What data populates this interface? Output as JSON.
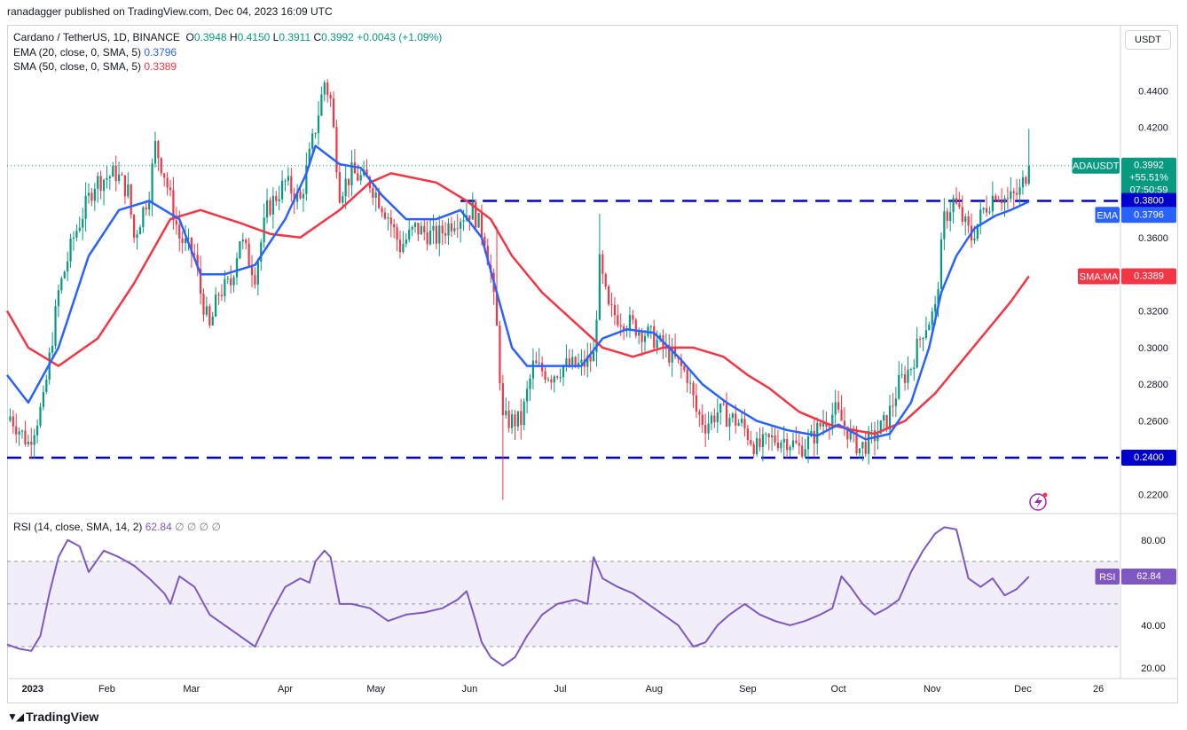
{
  "header": {
    "publisher": "ranadagger published on TradingView.com, Dec 04, 2023 16:09 UTC"
  },
  "legend": {
    "symbol": "Cardano / TetherUS, 1D, BINANCE",
    "open_label": "O",
    "open": "0.3948",
    "high_label": "H",
    "high": "0.4150",
    "low_label": "L",
    "low": "0.3911",
    "close_label": "C",
    "close": "0.3992",
    "change": "+0.0043 (+1.09%)",
    "ema_label": "EMA (20, close, 0, SMA, 5)",
    "ema_value": "0.3796",
    "sma_label": "SMA (50, close, 0, SMA, 5)",
    "sma_value": "0.3389"
  },
  "rsi_legend": {
    "label": "RSI (14, close, SMA, 14, 2)",
    "value": "62.84",
    "extras": "∅ ∅ ∅ ∅"
  },
  "toolbar": {
    "currency": "USDT"
  },
  "brand": {
    "name": "TradingView",
    "icon": "tradingview-logo"
  },
  "colors": {
    "up": "#089981",
    "down": "#f23645",
    "ema": "#2962ff",
    "sma": "#f23645",
    "rsi": "#7e57c2",
    "level": "#0000cc"
  },
  "chart_data": [
    {
      "type": "candlestick",
      "title": "Cardano / TetherUS, 1D, BINANCE",
      "ylim": [
        0.21,
        0.475
      ],
      "y_ticks": [
        "0.4400",
        "0.4200",
        "0.3600",
        "0.3200",
        "0.3000",
        "0.2800",
        "0.2600",
        "0.2200"
      ],
      "y_tick_values": [
        0.44,
        0.42,
        0.36,
        0.32,
        0.3,
        0.28,
        0.26,
        0.22
      ],
      "x_ticks": [
        "2023",
        "Feb",
        "Mar",
        "Apr",
        "May",
        "Jun",
        "Jul",
        "Aug",
        "Sep",
        "Oct",
        "Nov",
        "Dec",
        "26"
      ],
      "x_tick_days": [
        0,
        31,
        59,
        90,
        120,
        151,
        181,
        212,
        243,
        273,
        304,
        334,
        359
      ],
      "last": {
        "label": "ADAUSDT",
        "value": "0.3992",
        "change": "+55.51%",
        "countdown": "07:50:59",
        "price": 0.3992
      },
      "levels": [
        {
          "label": "0.3800",
          "value": 0.38
        },
        {
          "label": "0.2400",
          "value": 0.24
        }
      ],
      "ema_tag": {
        "label": "EMA",
        "value": "0.3796",
        "price": 0.3796
      },
      "sma_tag": {
        "label": "SMA:MA",
        "value": "0.3389",
        "price": 0.3389
      },
      "price_path": [
        [
          -2,
          0.265
        ],
        [
          5,
          0.248
        ],
        [
          10,
          0.27
        ],
        [
          15,
          0.33
        ],
        [
          20,
          0.36
        ],
        [
          27,
          0.39
        ],
        [
          34,
          0.395
        ],
        [
          38,
          0.385
        ],
        [
          40,
          0.36
        ],
        [
          45,
          0.385
        ],
        [
          47,
          0.41
        ],
        [
          50,
          0.395
        ],
        [
          55,
          0.36
        ],
        [
          60,
          0.35
        ],
        [
          62,
          0.33
        ],
        [
          65,
          0.31
        ],
        [
          68,
          0.33
        ],
        [
          72,
          0.335
        ],
        [
          75,
          0.36
        ],
        [
          80,
          0.34
        ],
        [
          84,
          0.375
        ],
        [
          90,
          0.39
        ],
        [
          95,
          0.38
        ],
        [
          100,
          0.42
        ],
        [
          103,
          0.445
        ],
        [
          105,
          0.435
        ],
        [
          108,
          0.385
        ],
        [
          112,
          0.395
        ],
        [
          118,
          0.39
        ],
        [
          124,
          0.372
        ],
        [
          128,
          0.355
        ],
        [
          133,
          0.365
        ],
        [
          140,
          0.36
        ],
        [
          146,
          0.37
        ],
        [
          152,
          0.375
        ],
        [
          156,
          0.36
        ],
        [
          158,
          0.34
        ],
        [
          160,
          0.31
        ],
        [
          162,
          0.26
        ],
        [
          168,
          0.26
        ],
        [
          172,
          0.29
        ],
        [
          178,
          0.285
        ],
        [
          182,
          0.29
        ],
        [
          188,
          0.29
        ],
        [
          192,
          0.295
        ],
        [
          194,
          0.345
        ],
        [
          197,
          0.32
        ],
        [
          202,
          0.315
        ],
        [
          207,
          0.31
        ],
        [
          212,
          0.305
        ],
        [
          218,
          0.295
        ],
        [
          223,
          0.285
        ],
        [
          226,
          0.265
        ],
        [
          229,
          0.258
        ],
        [
          233,
          0.265
        ],
        [
          237,
          0.262
        ],
        [
          241,
          0.258
        ],
        [
          246,
          0.245
        ],
        [
          251,
          0.25
        ],
        [
          256,
          0.25
        ],
        [
          260,
          0.245
        ],
        [
          264,
          0.25
        ],
        [
          268,
          0.26
        ],
        [
          272,
          0.265
        ],
        [
          276,
          0.255
        ],
        [
          280,
          0.245
        ],
        [
          284,
          0.25
        ],
        [
          289,
          0.26
        ],
        [
          293,
          0.28
        ],
        [
          297,
          0.29
        ],
        [
          301,
          0.31
        ],
        [
          305,
          0.32
        ],
        [
          308,
          0.37
        ],
        [
          311,
          0.38
        ],
        [
          314,
          0.37
        ],
        [
          317,
          0.36
        ],
        [
          321,
          0.375
        ],
        [
          325,
          0.385
        ],
        [
          329,
          0.38
        ],
        [
          333,
          0.385
        ],
        [
          336,
          0.3992
        ]
      ],
      "series": [
        {
          "name": "EMA 20",
          "points": [
            [
              -2,
              0.285
            ],
            [
              5,
              0.27
            ],
            [
              15,
              0.3
            ],
            [
              25,
              0.35
            ],
            [
              35,
              0.375
            ],
            [
              45,
              0.38
            ],
            [
              55,
              0.37
            ],
            [
              62,
              0.34
            ],
            [
              70,
              0.34
            ],
            [
              80,
              0.345
            ],
            [
              90,
              0.37
            ],
            [
              97,
              0.395
            ],
            [
              100,
              0.41
            ],
            [
              108,
              0.4
            ],
            [
              115,
              0.398
            ],
            [
              122,
              0.383
            ],
            [
              130,
              0.37
            ],
            [
              140,
              0.37
            ],
            [
              148,
              0.375
            ],
            [
              155,
              0.36
            ],
            [
              160,
              0.33
            ],
            [
              165,
              0.3
            ],
            [
              170,
              0.29
            ],
            [
              178,
              0.29
            ],
            [
              188,
              0.29
            ],
            [
              195,
              0.305
            ],
            [
              203,
              0.31
            ],
            [
              212,
              0.308
            ],
            [
              220,
              0.295
            ],
            [
              228,
              0.28
            ],
            [
              236,
              0.27
            ],
            [
              246,
              0.26
            ],
            [
              256,
              0.255
            ],
            [
              266,
              0.252
            ],
            [
              273,
              0.258
            ],
            [
              282,
              0.25
            ],
            [
              290,
              0.253
            ],
            [
              297,
              0.27
            ],
            [
              303,
              0.3
            ],
            [
              307,
              0.33
            ],
            [
              312,
              0.35
            ],
            [
              318,
              0.365
            ],
            [
              325,
              0.372
            ],
            [
              330,
              0.375
            ],
            [
              336,
              0.3796
            ]
          ]
        },
        {
          "name": "SMA 50",
          "points": [
            [
              -2,
              0.32
            ],
            [
              5,
              0.3
            ],
            [
              15,
              0.29
            ],
            [
              28,
              0.305
            ],
            [
              40,
              0.335
            ],
            [
              52,
              0.37
            ],
            [
              62,
              0.375
            ],
            [
              75,
              0.368
            ],
            [
              85,
              0.362
            ],
            [
              95,
              0.36
            ],
            [
              108,
              0.375
            ],
            [
              118,
              0.39
            ],
            [
              125,
              0.395
            ],
            [
              140,
              0.39
            ],
            [
              150,
              0.38
            ],
            [
              158,
              0.37
            ],
            [
              165,
              0.35
            ],
            [
              175,
              0.33
            ],
            [
              185,
              0.315
            ],
            [
              195,
              0.3
            ],
            [
              205,
              0.295
            ],
            [
              215,
              0.3
            ],
            [
              225,
              0.3
            ],
            [
              235,
              0.295
            ],
            [
              243,
              0.285
            ],
            [
              250,
              0.278
            ],
            [
              260,
              0.265
            ],
            [
              270,
              0.258
            ],
            [
              278,
              0.255
            ],
            [
              285,
              0.253
            ],
            [
              295,
              0.26
            ],
            [
              305,
              0.275
            ],
            [
              315,
              0.295
            ],
            [
              325,
              0.315
            ],
            [
              330,
              0.325
            ],
            [
              336,
              0.3389
            ]
          ]
        }
      ]
    },
    {
      "type": "line",
      "title": "RSI (14, close, SMA, 14, 2)",
      "ylim": [
        15,
        92
      ],
      "y_ticks": [
        "80.00",
        "40.00",
        "20.00"
      ],
      "y_tick_values": [
        80,
        40,
        20
      ],
      "band": [
        30,
        70
      ],
      "midline": 50,
      "last": {
        "label": "RSI",
        "value": "62.84",
        "price": 62.84
      },
      "series": [
        {
          "name": "RSI",
          "points": [
            [
              -2,
              31
            ],
            [
              2,
              29
            ],
            [
              6,
              28
            ],
            [
              9,
              35
            ],
            [
              12,
              55
            ],
            [
              15,
              72
            ],
            [
              18,
              80
            ],
            [
              22,
              77
            ],
            [
              25,
              65
            ],
            [
              30,
              75
            ],
            [
              35,
              72
            ],
            [
              40,
              68
            ],
            [
              45,
              62
            ],
            [
              50,
              55
            ],
            [
              52,
              50
            ],
            [
              55,
              63
            ],
            [
              60,
              58
            ],
            [
              65,
              45
            ],
            [
              70,
              40
            ],
            [
              75,
              35
            ],
            [
              80,
              30
            ],
            [
              85,
              45
            ],
            [
              90,
              58
            ],
            [
              95,
              62
            ],
            [
              98,
              60
            ],
            [
              100,
              70
            ],
            [
              103,
              75
            ],
            [
              105,
              72
            ],
            [
              108,
              50
            ],
            [
              112,
              50
            ],
            [
              118,
              48
            ],
            [
              124,
              42
            ],
            [
              130,
              45
            ],
            [
              136,
              46
            ],
            [
              142,
              48
            ],
            [
              147,
              52
            ],
            [
              150,
              56
            ],
            [
              153,
              42
            ],
            [
              155,
              32
            ],
            [
              158,
              25
            ],
            [
              162,
              21
            ],
            [
              166,
              25
            ],
            [
              170,
              35
            ],
            [
              175,
              45
            ],
            [
              180,
              50
            ],
            [
              186,
              52
            ],
            [
              190,
              50
            ],
            [
              192,
              72
            ],
            [
              195,
              62
            ],
            [
              200,
              58
            ],
            [
              205,
              55
            ],
            [
              210,
              50
            ],
            [
              215,
              45
            ],
            [
              220,
              40
            ],
            [
              225,
              30
            ],
            [
              229,
              32
            ],
            [
              233,
              40
            ],
            [
              237,
              45
            ],
            [
              242,
              50
            ],
            [
              247,
              45
            ],
            [
              252,
              42
            ],
            [
              257,
              40
            ],
            [
              262,
              42
            ],
            [
              267,
              45
            ],
            [
              271,
              48
            ],
            [
              274,
              63
            ],
            [
              277,
              58
            ],
            [
              281,
              50
            ],
            [
              285,
              45
            ],
            [
              289,
              48
            ],
            [
              293,
              52
            ],
            [
              297,
              65
            ],
            [
              301,
              75
            ],
            [
              305,
              83
            ],
            [
              308,
              86
            ],
            [
              312,
              85
            ],
            [
              316,
              62
            ],
            [
              320,
              58
            ],
            [
              324,
              62
            ],
            [
              328,
              54
            ],
            [
              332,
              57
            ],
            [
              336,
              62.84
            ]
          ]
        }
      ]
    }
  ]
}
